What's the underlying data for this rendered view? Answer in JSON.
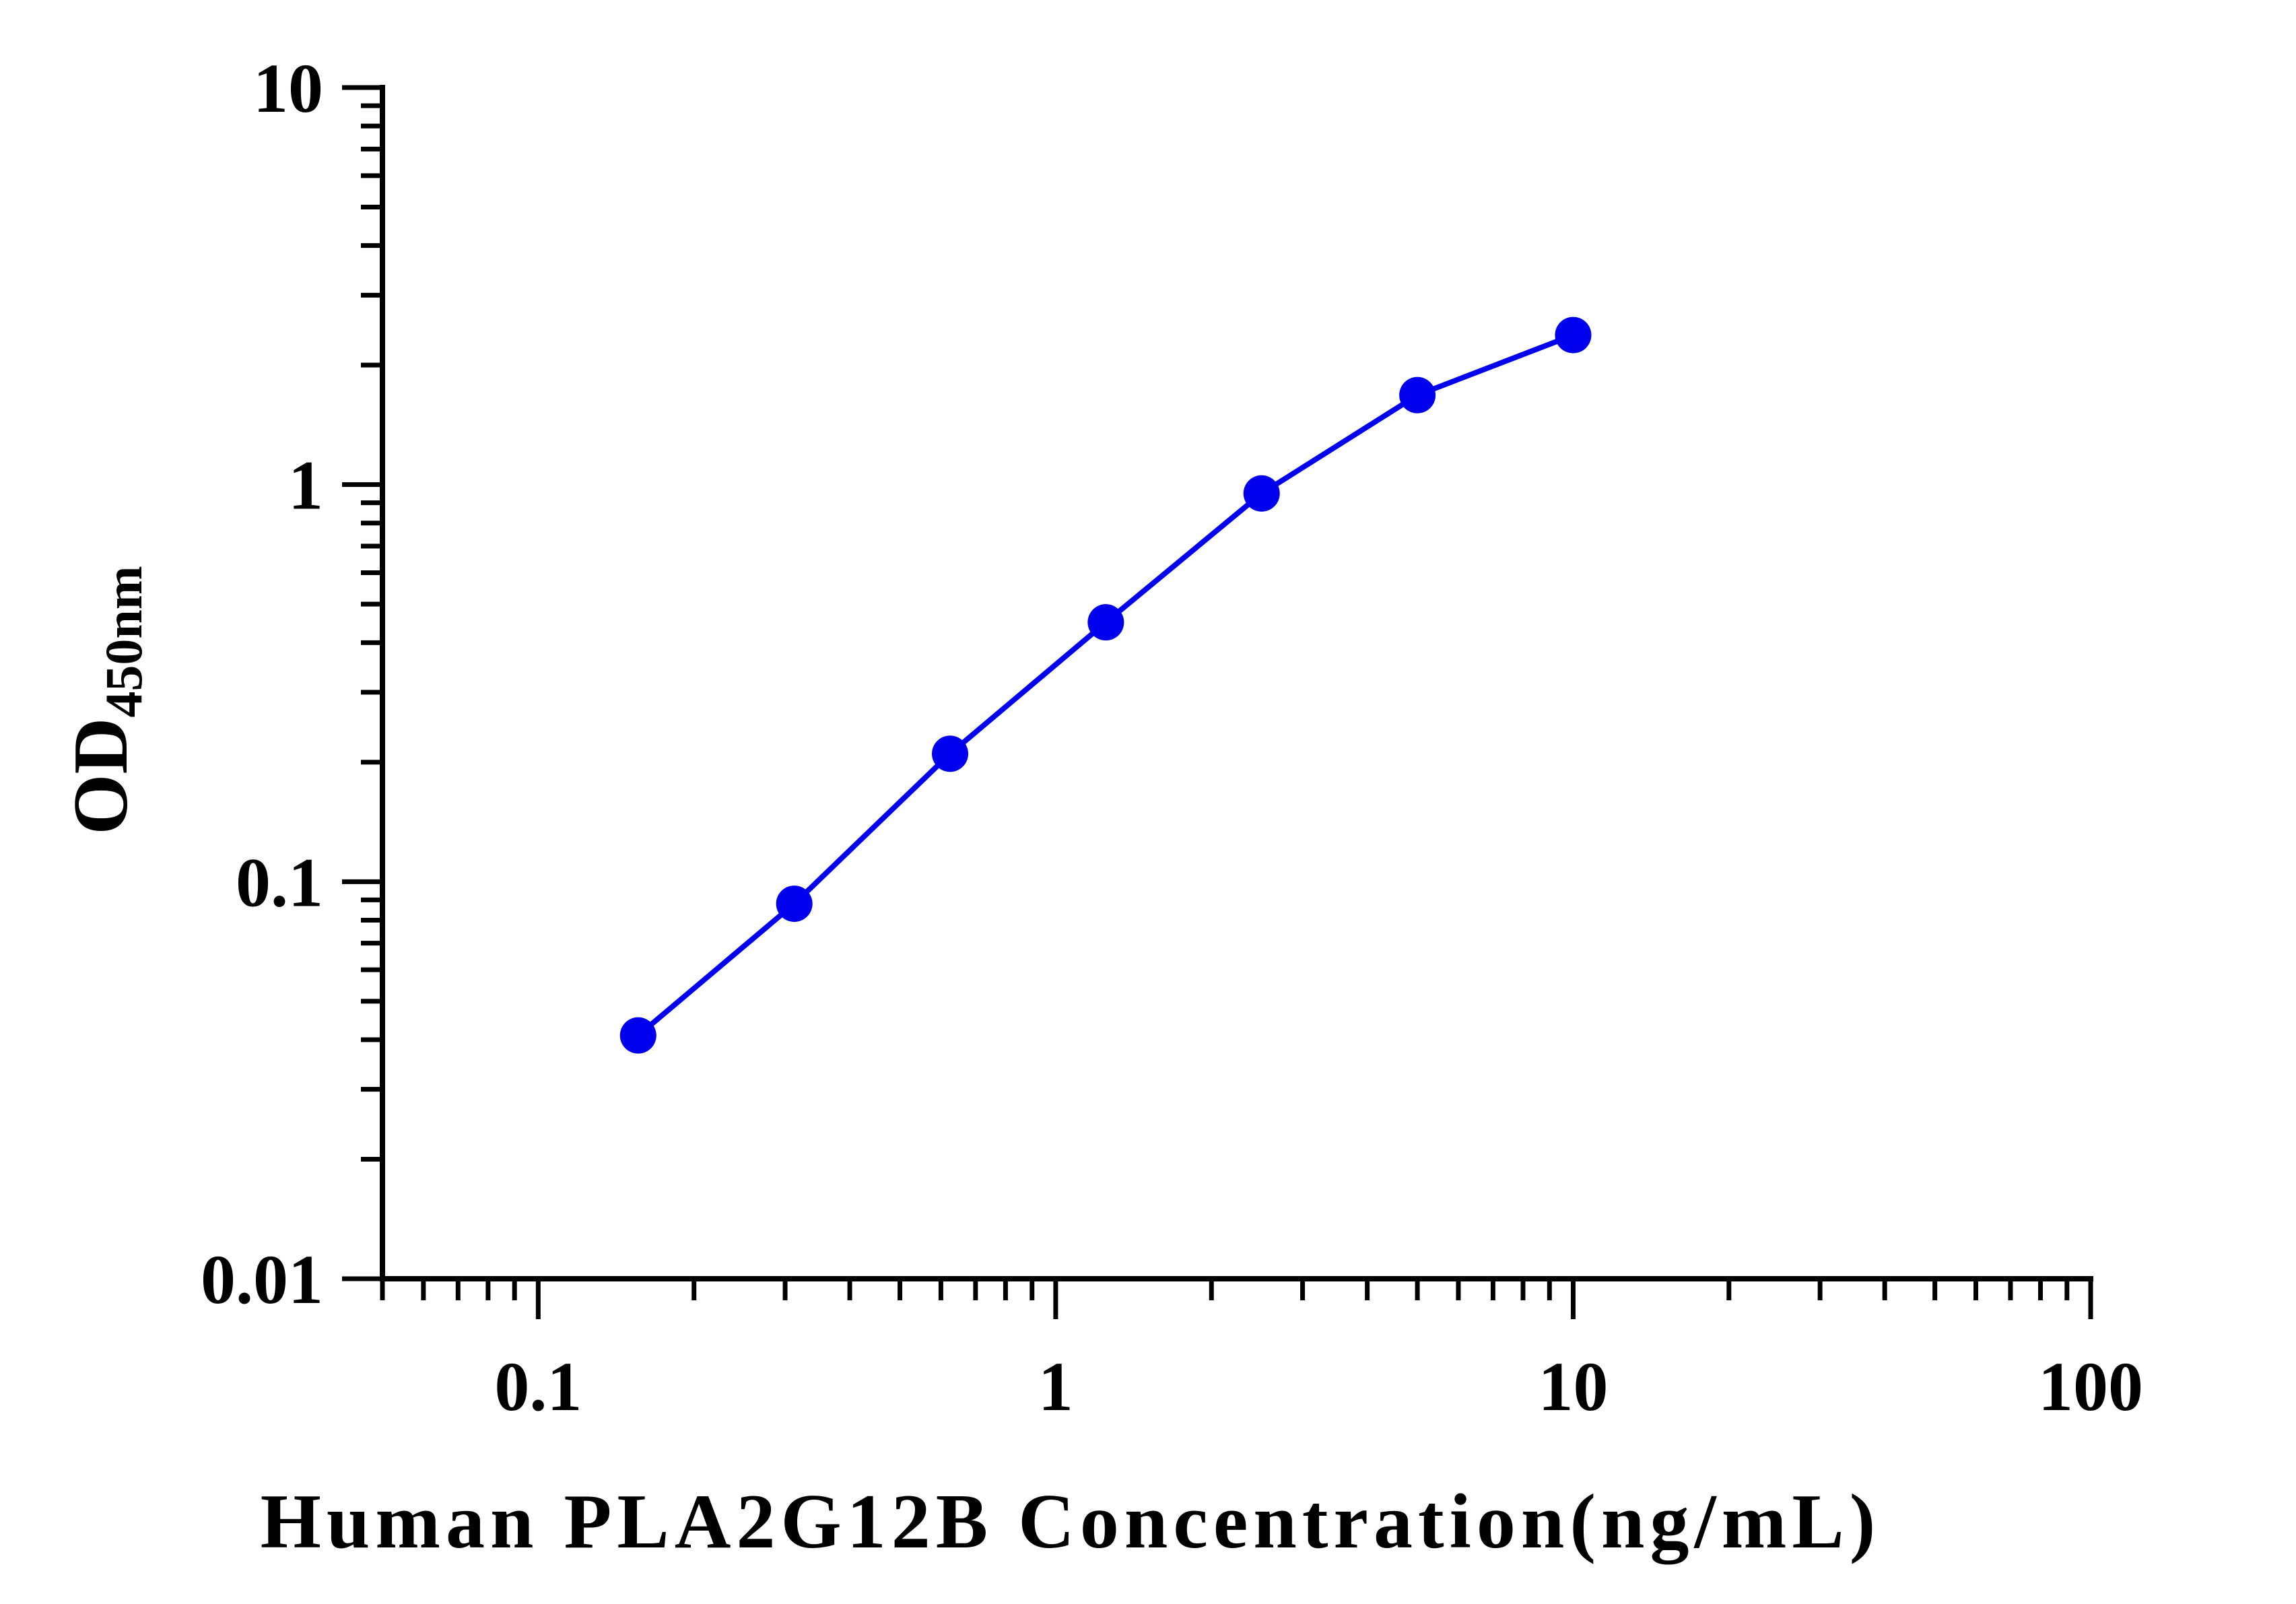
{
  "chart_data": {
    "type": "line",
    "xlabel": "Human PLA2G12B Concentration(ng/mL)",
    "ylabel_main": "OD",
    "ylabel_sub": "450nm",
    "x_scale": "log",
    "y_scale": "log",
    "xlim": [
      0.05,
      100
    ],
    "ylim": [
      0.01,
      10
    ],
    "x_tick_labels": [
      "0.1",
      "1",
      "10",
      "100"
    ],
    "y_tick_labels": [
      "0.01",
      "0.1",
      "1",
      "10"
    ],
    "grid": false,
    "legend": "none",
    "series": [
      {
        "color": "#0000ee",
        "x": [
          0.156,
          0.3125,
          0.625,
          1.25,
          2.5,
          5,
          10
        ],
        "y": [
          0.041,
          0.088,
          0.21,
          0.45,
          0.95,
          1.68,
          2.38
        ]
      }
    ]
  }
}
